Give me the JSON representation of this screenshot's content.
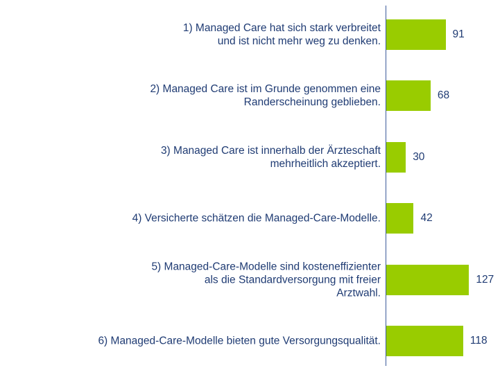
{
  "chart_data": {
    "type": "bar",
    "orientation": "horizontal",
    "color": "#99cc00",
    "categories": [
      "1)  Managed Care hat sich stark verbreitet\nund ist nicht mehr weg zu denken.",
      "2)  Managed Care ist im Grunde genommen eine\nRanderscheinung geblieben.",
      "3)  Managed Care ist innerhalb der Ärzteschaft\nmehrheitlich akzeptiert.",
      "4)  Versicherte schätzen die Managed-Care-Modelle.",
      "5)  Managed-Care-Modelle sind kosteneffizienter\nals die Standardversorgung mit freier\nArztwahl.",
      "6)  Managed-Care-Modelle bieten gute Versorgungsqualität."
    ],
    "values": [
      91,
      68,
      30,
      42,
      127,
      118
    ]
  }
}
